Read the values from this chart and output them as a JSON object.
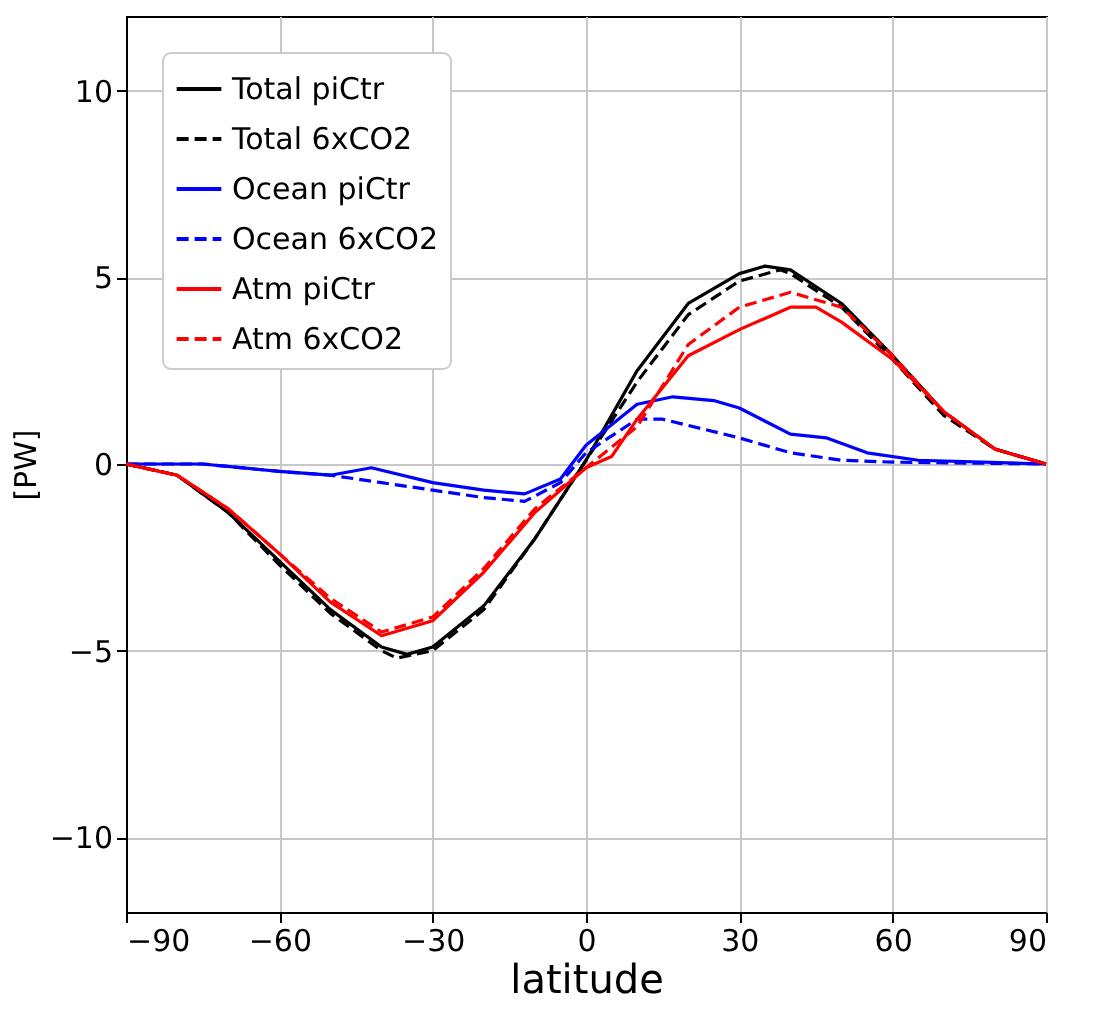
{
  "chart_data": {
    "type": "line",
    "xlabel": "latitude",
    "ylabel": "[PW]",
    "xlim": [
      -90,
      90
    ],
    "xticks": [
      -90,
      -60,
      -30,
      0,
      30,
      60,
      90
    ],
    "ylim": [
      -12,
      12
    ],
    "yticks": [
      -10,
      -5,
      0,
      5,
      10
    ],
    "grid": true,
    "legend": "top left",
    "series": [
      {
        "name": "Total piCtr",
        "color": "#000000",
        "line_style": "solid",
        "x": [
          -90,
          -80,
          -70,
          -60,
          -50,
          -40,
          -35,
          -30,
          -20,
          -10,
          0,
          10,
          20,
          30,
          35,
          40,
          50,
          60,
          70,
          80,
          90
        ],
        "values": [
          0,
          -0.3,
          -1.3,
          -2.6,
          -3.9,
          -4.9,
          -5.1,
          -4.9,
          -3.8,
          -2.0,
          0.1,
          2.5,
          4.3,
          5.1,
          5.3,
          5.2,
          4.3,
          2.9,
          1.4,
          0.4,
          0
        ]
      },
      {
        "name": "Total 6xCO2",
        "color": "#000000",
        "line_style": "dashed",
        "x": [
          -90,
          -80,
          -70,
          -60,
          -50,
          -40,
          -37,
          -30,
          -20,
          -10,
          0,
          10,
          20,
          30,
          38,
          40,
          50,
          60,
          70,
          80,
          90
        ],
        "values": [
          0,
          -0.3,
          -1.3,
          -2.7,
          -4.0,
          -5.0,
          -5.2,
          -5.0,
          -3.9,
          -2.0,
          0.1,
          2.2,
          4.0,
          4.9,
          5.2,
          5.1,
          4.2,
          2.8,
          1.3,
          0.4,
          0
        ]
      },
      {
        "name": "Ocean piCtr",
        "color": "#0000ff",
        "line_style": "solid",
        "x": [
          -90,
          -75,
          -60,
          -50,
          -42,
          -30,
          -20,
          -12,
          -5,
          0,
          10,
          17,
          25,
          30,
          40,
          47,
          55,
          65,
          90
        ],
        "values": [
          0,
          0,
          -0.2,
          -0.3,
          -0.1,
          -0.5,
          -0.7,
          -0.8,
          -0.4,
          0.5,
          1.6,
          1.8,
          1.7,
          1.5,
          0.8,
          0.7,
          0.3,
          0.1,
          0
        ]
      },
      {
        "name": "Ocean 6xCO2",
        "color": "#0000ff",
        "line_style": "dashed",
        "x": [
          -90,
          -75,
          -60,
          -50,
          -40,
          -30,
          -20,
          -12,
          -5,
          0,
          10,
          15,
          30,
          40,
          50,
          60,
          90
        ],
        "values": [
          0,
          0,
          -0.2,
          -0.3,
          -0.5,
          -0.7,
          -0.9,
          -1.0,
          -0.5,
          0.3,
          1.2,
          1.2,
          0.7,
          0.3,
          0.1,
          0.05,
          0
        ]
      },
      {
        "name": "Atm piCtr",
        "color": "#ff0000",
        "line_style": "solid",
        "x": [
          -90,
          -80,
          -70,
          -60,
          -50,
          -40,
          -30,
          -20,
          -10,
          0,
          5,
          10,
          20,
          30,
          40,
          45,
          50,
          60,
          70,
          80,
          90
        ],
        "values": [
          0,
          -0.3,
          -1.2,
          -2.4,
          -3.7,
          -4.6,
          -4.2,
          -2.9,
          -1.3,
          -0.1,
          0.2,
          1.2,
          2.9,
          3.6,
          4.2,
          4.2,
          3.8,
          2.8,
          1.4,
          0.4,
          0
        ]
      },
      {
        "name": "Atm 6xCO2",
        "color": "#ff0000",
        "line_style": "dashed",
        "x": [
          -90,
          -80,
          -70,
          -60,
          -50,
          -40,
          -30,
          -20,
          -10,
          0,
          10,
          20,
          30,
          40,
          50,
          60,
          70,
          80,
          90
        ],
        "values": [
          0,
          -0.3,
          -1.2,
          -2.4,
          -3.6,
          -4.5,
          -4.1,
          -2.8,
          -1.2,
          -0.1,
          1.0,
          3.2,
          4.2,
          4.6,
          4.2,
          2.9,
          1.4,
          0.4,
          0
        ]
      }
    ]
  }
}
